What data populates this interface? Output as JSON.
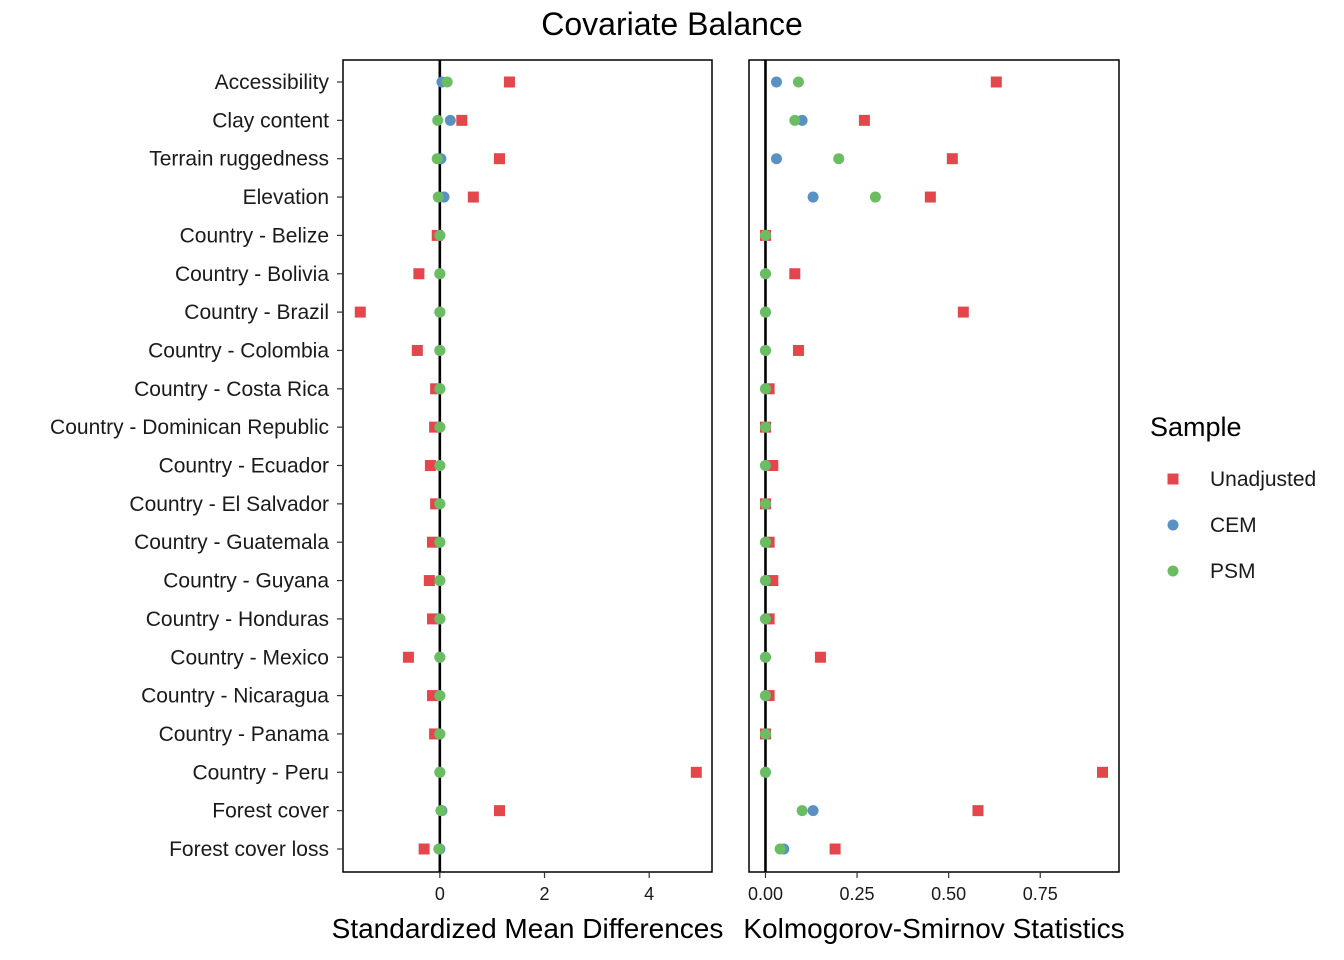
{
  "chart_data": {
    "type": "scatter",
    "title": "Covariate Balance",
    "covariates": [
      "Accessibility",
      "Clay content",
      "Terrain ruggedness",
      "Elevation",
      "Country - Belize",
      "Country - Bolivia",
      "Country - Brazil",
      "Country - Colombia",
      "Country - Costa Rica",
      "Country - Dominican Republic",
      "Country - Ecuador",
      "Country - El Salvador",
      "Country - Guatemala",
      "Country - Guyana",
      "Country - Honduras",
      "Country - Mexico",
      "Country - Nicaragua",
      "Country - Panama",
      "Country - Peru",
      "Forest cover",
      "Forest cover loss"
    ],
    "legend": {
      "title": "Sample",
      "position": "right",
      "entries": [
        {
          "name": "Unadjusted",
          "color": "#e4474b",
          "shape": "square"
        },
        {
          "name": "CEM",
          "color": "#5a91c3",
          "shape": "circle"
        },
        {
          "name": "PSM",
          "color": "#6bbd62",
          "shape": "circle"
        }
      ]
    },
    "panels": [
      {
        "xlabel": "Standardized Mean Differences",
        "xlim": [
          -1.85,
          5.2
        ],
        "ticks": [
          0,
          2,
          4
        ],
        "tick_labels": [
          "0",
          "2",
          "4"
        ],
        "reference_line": 0,
        "series": [
          {
            "name": "Unadjusted",
            "values": [
              1.33,
              0.42,
              1.14,
              0.64,
              -0.05,
              -0.4,
              -1.52,
              -0.43,
              -0.08,
              -0.1,
              -0.18,
              -0.08,
              -0.14,
              -0.2,
              -0.14,
              -0.6,
              -0.14,
              -0.1,
              4.9,
              1.14,
              -0.3
            ]
          },
          {
            "name": "CEM",
            "values": [
              0.04,
              0.2,
              0.02,
              0.08,
              0.0,
              0.0,
              0.0,
              0.0,
              0.0,
              0.0,
              0.0,
              0.0,
              0.0,
              0.0,
              0.0,
              0.0,
              0.0,
              0.0,
              0.0,
              0.04,
              0.0
            ]
          },
          {
            "name": "PSM",
            "values": [
              0.14,
              -0.04,
              -0.05,
              -0.03,
              0.0,
              0.0,
              0.0,
              0.0,
              0.0,
              0.0,
              0.0,
              0.0,
              0.0,
              0.0,
              0.0,
              0.0,
              0.0,
              0.0,
              0.0,
              0.02,
              -0.02
            ]
          }
        ]
      },
      {
        "xlabel": "Kolmogorov-Smirnov Statistics",
        "xlim": [
          -0.045,
          0.965
        ],
        "ticks": [
          0,
          0.25,
          0.5,
          0.75
        ],
        "tick_labels": [
          "0.00",
          "0.25",
          "0.50",
          "0.75"
        ],
        "reference_line": 0,
        "series": [
          {
            "name": "Unadjusted",
            "values": [
              0.63,
              0.27,
              0.51,
              0.45,
              0.0,
              0.08,
              0.54,
              0.09,
              0.01,
              0.0,
              0.02,
              0.0,
              0.01,
              0.02,
              0.01,
              0.15,
              0.01,
              0.0,
              0.92,
              0.58,
              0.19
            ]
          },
          {
            "name": "CEM",
            "values": [
              0.03,
              0.1,
              0.03,
              0.13,
              0.0,
              0.0,
              0.0,
              0.0,
              0.0,
              0.0,
              0.0,
              0.0,
              0.0,
              0.0,
              0.0,
              0.0,
              0.0,
              0.0,
              0.0,
              0.13,
              0.05
            ]
          },
          {
            "name": "PSM",
            "values": [
              0.09,
              0.08,
              0.2,
              0.3,
              0.0,
              0.0,
              0.0,
              0.0,
              0.0,
              0.0,
              0.0,
              0.0,
              0.0,
              0.0,
              0.0,
              0.0,
              0.0,
              0.0,
              0.0,
              0.1,
              0.04
            ]
          }
        ]
      }
    ]
  }
}
